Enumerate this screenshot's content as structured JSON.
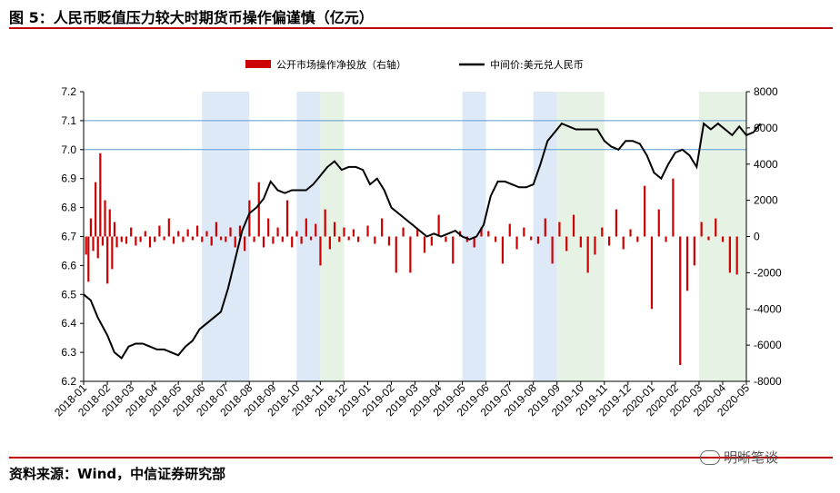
{
  "header": {
    "title": "图 5：人民币贬值压力较大时期货币操作偏谨慎（亿元）"
  },
  "footer": {
    "source": "资料来源：Wind，中信证券研究部",
    "watermark": "明晰笔谈"
  },
  "colors": {
    "accent_red": "#c00000",
    "bar_red": "#cc0000",
    "line_black": "#000000",
    "ref_line_blue": "#5b9bd5",
    "shade_blue": "#dde9f7",
    "shade_green": "#e6f3e4"
  },
  "chart_data": {
    "type": "bar+line",
    "legend": [
      "公开市场操作净投放（右轴）",
      "中间价:美元兑人民币"
    ],
    "left_axis": {
      "ticks": [
        "7.2",
        "7.1",
        "7.0",
        "6.9",
        "6.8",
        "6.7",
        "6.6",
        "6.5",
        "6.4",
        "6.3",
        "6.2"
      ],
      "range": [
        6.2,
        7.2
      ]
    },
    "right_axis": {
      "ticks": [
        "8000",
        "6000",
        "4000",
        "2000",
        "0",
        "-2000",
        "-4000",
        "-6000",
        "-8000"
      ],
      "range": [
        -8000,
        8000
      ]
    },
    "x_ticks": [
      "2018-01",
      "2018-02",
      "2018-03",
      "2018-04",
      "2018-05",
      "2018-06",
      "2018-07",
      "2018-08",
      "2018-09",
      "2018-10",
      "2018-11",
      "2018-12",
      "2019-01",
      "2019-02",
      "2019-03",
      "2019-04",
      "2019-05",
      "2019-06",
      "2019-07",
      "2019-08",
      "2019-09",
      "2019-10",
      "2019-11",
      "2019-12",
      "2020-01",
      "2020-02",
      "2020-03",
      "2020-04",
      "2020-05"
    ],
    "reference_lines": [
      7.1,
      7.0
    ],
    "shaded_periods": [
      {
        "start": "2018-06",
        "end": "2018-08",
        "color": "blue"
      },
      {
        "start": "2018-10",
        "end": "2018-11",
        "color": "blue"
      },
      {
        "start": "2018-11",
        "end": "2018-12",
        "color": "green"
      },
      {
        "start": "2019-05",
        "end": "2019-06",
        "color": "blue"
      },
      {
        "start": "2019-08",
        "end": "2019-09",
        "color": "blue"
      },
      {
        "start": "2019-09",
        "end": "2019-11",
        "color": "green"
      },
      {
        "start": "2020-03",
        "end": "2020-05",
        "color": "green"
      }
    ],
    "line_series": {
      "name": "中间价:美元兑人民币",
      "points": [
        [
          0.0,
          6.5
        ],
        [
          0.3,
          6.48
        ],
        [
          0.6,
          6.42
        ],
        [
          1.0,
          6.36
        ],
        [
          1.3,
          6.3
        ],
        [
          1.6,
          6.28
        ],
        [
          1.9,
          6.32
        ],
        [
          2.2,
          6.33
        ],
        [
          2.5,
          6.33
        ],
        [
          2.8,
          6.32
        ],
        [
          3.1,
          6.31
        ],
        [
          3.4,
          6.31
        ],
        [
          3.7,
          6.3
        ],
        [
          4.0,
          6.29
        ],
        [
          4.3,
          6.32
        ],
        [
          4.6,
          6.34
        ],
        [
          4.9,
          6.38
        ],
        [
          5.2,
          6.4
        ],
        [
          5.5,
          6.42
        ],
        [
          5.8,
          6.44
        ],
        [
          6.1,
          6.52
        ],
        [
          6.4,
          6.62
        ],
        [
          6.7,
          6.72
        ],
        [
          7.0,
          6.78
        ],
        [
          7.3,
          6.8
        ],
        [
          7.6,
          6.83
        ],
        [
          7.9,
          6.89
        ],
        [
          8.2,
          6.86
        ],
        [
          8.5,
          6.85
        ],
        [
          8.8,
          6.86
        ],
        [
          9.1,
          6.86
        ],
        [
          9.4,
          6.86
        ],
        [
          9.7,
          6.88
        ],
        [
          10.0,
          6.91
        ],
        [
          10.3,
          6.94
        ],
        [
          10.6,
          6.96
        ],
        [
          10.9,
          6.93
        ],
        [
          11.2,
          6.94
        ],
        [
          11.5,
          6.94
        ],
        [
          11.8,
          6.93
        ],
        [
          12.1,
          6.88
        ],
        [
          12.4,
          6.9
        ],
        [
          12.7,
          6.86
        ],
        [
          13.0,
          6.8
        ],
        [
          13.3,
          6.78
        ],
        [
          13.6,
          6.76
        ],
        [
          13.9,
          6.74
        ],
        [
          14.2,
          6.72
        ],
        [
          14.5,
          6.7
        ],
        [
          14.8,
          6.71
        ],
        [
          15.1,
          6.7
        ],
        [
          15.4,
          6.71
        ],
        [
          15.7,
          6.72
        ],
        [
          16.0,
          6.7
        ],
        [
          16.3,
          6.69
        ],
        [
          16.6,
          6.7
        ],
        [
          16.9,
          6.74
        ],
        [
          17.2,
          6.84
        ],
        [
          17.5,
          6.89
        ],
        [
          17.8,
          6.89
        ],
        [
          18.1,
          6.88
        ],
        [
          18.4,
          6.87
        ],
        [
          18.7,
          6.87
        ],
        [
          19.0,
          6.88
        ],
        [
          19.3,
          6.95
        ],
        [
          19.6,
          7.03
        ],
        [
          19.9,
          7.06
        ],
        [
          20.2,
          7.09
        ],
        [
          20.5,
          7.08
        ],
        [
          20.8,
          7.07
        ],
        [
          21.1,
          7.07
        ],
        [
          21.4,
          7.07
        ],
        [
          21.7,
          7.07
        ],
        [
          22.0,
          7.03
        ],
        [
          22.3,
          7.01
        ],
        [
          22.6,
          7.0
        ],
        [
          22.9,
          7.03
        ],
        [
          23.2,
          7.03
        ],
        [
          23.5,
          7.02
        ],
        [
          23.8,
          6.98
        ],
        [
          24.1,
          6.92
        ],
        [
          24.4,
          6.9
        ],
        [
          24.7,
          6.95
        ],
        [
          25.0,
          6.99
        ],
        [
          25.3,
          7.0
        ],
        [
          25.6,
          6.98
        ],
        [
          25.9,
          6.94
        ],
        [
          26.2,
          7.09
        ],
        [
          26.5,
          7.07
        ],
        [
          26.8,
          7.09
        ],
        [
          27.1,
          7.07
        ],
        [
          27.4,
          7.05
        ],
        [
          27.7,
          7.08
        ],
        [
          28.0,
          7.05
        ],
        [
          28.3,
          7.06
        ],
        [
          28.6,
          7.09
        ]
      ]
    },
    "bar_series": {
      "name": "公开市场操作净投放（右轴）",
      "points": [
        [
          0.1,
          -1000
        ],
        [
          0.2,
          -2500
        ],
        [
          0.3,
          1000
        ],
        [
          0.4,
          -800
        ],
        [
          0.5,
          3000
        ],
        [
          0.6,
          -1200
        ],
        [
          0.7,
          4600
        ],
        [
          0.8,
          -500
        ],
        [
          0.9,
          2000
        ],
        [
          1.0,
          -2600
        ],
        [
          1.1,
          1500
        ],
        [
          1.2,
          -1800
        ],
        [
          1.3,
          800
        ],
        [
          1.4,
          -600
        ],
        [
          1.6,
          -300
        ],
        [
          1.8,
          -400
        ],
        [
          2.0,
          500
        ],
        [
          2.2,
          -500
        ],
        [
          2.4,
          -300
        ],
        [
          2.6,
          300
        ],
        [
          2.8,
          -600
        ],
        [
          3.0,
          -300
        ],
        [
          3.2,
          600
        ],
        [
          3.4,
          -200
        ],
        [
          3.6,
          1000
        ],
        [
          3.8,
          -400
        ],
        [
          4.0,
          300
        ],
        [
          4.2,
          -300
        ],
        [
          4.4,
          400
        ],
        [
          4.6,
          -200
        ],
        [
          4.8,
          600
        ],
        [
          5.0,
          -300
        ],
        [
          5.2,
          300
        ],
        [
          5.4,
          -500
        ],
        [
          5.6,
          800
        ],
        [
          5.8,
          -200
        ],
        [
          6.0,
          -300
        ],
        [
          6.2,
          500
        ],
        [
          6.4,
          -600
        ],
        [
          6.6,
          600
        ],
        [
          6.8,
          -800
        ],
        [
          7.0,
          2000
        ],
        [
          7.2,
          -300
        ],
        [
          7.4,
          3000
        ],
        [
          7.6,
          -600
        ],
        [
          7.8,
          1000
        ],
        [
          8.0,
          -400
        ],
        [
          8.2,
          500
        ],
        [
          8.4,
          -300
        ],
        [
          8.6,
          2000
        ],
        [
          8.8,
          -600
        ],
        [
          9.0,
          300
        ],
        [
          9.2,
          -400
        ],
        [
          9.4,
          1000
        ],
        [
          9.6,
          -200
        ],
        [
          9.8,
          700
        ],
        [
          10.0,
          -1600
        ],
        [
          10.2,
          1500
        ],
        [
          10.4,
          -700
        ],
        [
          10.6,
          800
        ],
        [
          10.8,
          -300
        ],
        [
          11.0,
          500
        ],
        [
          11.2,
          -200
        ],
        [
          11.4,
          400
        ],
        [
          11.6,
          -300
        ],
        [
          12.0,
          600
        ],
        [
          12.3,
          -400
        ],
        [
          12.6,
          1000
        ],
        [
          12.9,
          -500
        ],
        [
          13.2,
          -2000
        ],
        [
          13.5,
          500
        ],
        [
          13.8,
          -2000
        ],
        [
          14.1,
          400
        ],
        [
          14.4,
          -900
        ],
        [
          14.7,
          -500
        ],
        [
          15.0,
          1200
        ],
        [
          15.3,
          -300
        ],
        [
          15.6,
          -1500
        ],
        [
          15.9,
          300
        ],
        [
          16.2,
          -300
        ],
        [
          16.5,
          -600
        ],
        [
          16.8,
          500
        ],
        [
          17.1,
          300
        ],
        [
          17.4,
          -300
        ],
        [
          17.7,
          -1500
        ],
        [
          18.0,
          700
        ],
        [
          18.3,
          -700
        ],
        [
          18.6,
          500
        ],
        [
          18.9,
          -200
        ],
        [
          19.2,
          -400
        ],
        [
          19.5,
          1000
        ],
        [
          19.8,
          -1500
        ],
        [
          20.1,
          800
        ],
        [
          20.4,
          -800
        ],
        [
          20.7,
          1200
        ],
        [
          21.0,
          -600
        ],
        [
          21.3,
          -2000
        ],
        [
          21.6,
          -1000
        ],
        [
          21.9,
          500
        ],
        [
          22.2,
          -500
        ],
        [
          22.5,
          1500
        ],
        [
          22.8,
          -700
        ],
        [
          23.1,
          400
        ],
        [
          23.4,
          -300
        ],
        [
          23.7,
          2800
        ],
        [
          24.0,
          -4000
        ],
        [
          24.3,
          1500
        ],
        [
          24.6,
          -300
        ],
        [
          24.9,
          3200
        ],
        [
          25.2,
          -7100
        ],
        [
          25.5,
          -3000
        ],
        [
          25.8,
          -1600
        ],
        [
          26.1,
          800
        ],
        [
          26.4,
          -200
        ],
        [
          26.7,
          1000
        ],
        [
          27.0,
          -300
        ],
        [
          27.3,
          -2000
        ],
        [
          27.6,
          -2100
        ]
      ]
    }
  }
}
